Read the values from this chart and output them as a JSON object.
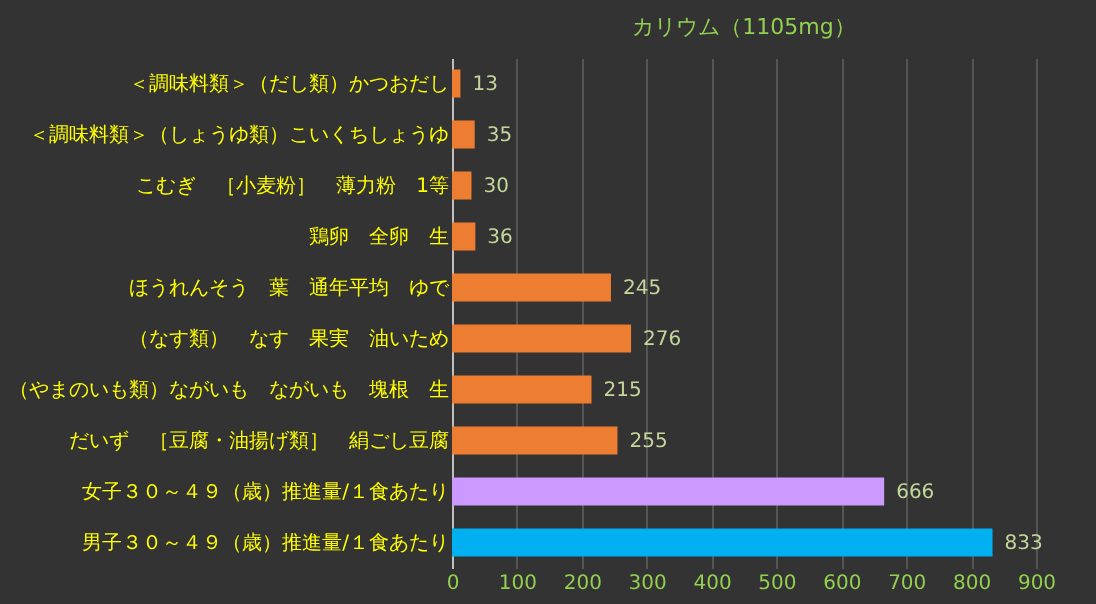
{
  "chart_data": {
    "type": "bar",
    "orientation": "horizontal",
    "title": "カリウム（1105mg）",
    "categories": [
      "＜調味料類＞（だし類）かつおだし",
      "＜調味料類＞（しょうゆ類）こいくちしょうゆ",
      "こむぎ　［小麦粉］　薄力粉　1等",
      "鶏卵　全卵　生",
      "ほうれんそう　葉　通年平均　ゆで",
      "（なす類）　なす　果実　油いため",
      "（やまのいも類）ながいも　ながいも　塊根　生",
      "だいず　［豆腐・油揚げ類］　絹ごし豆腐",
      "女子３０～４９（歳）推進量/１食あたり",
      "男子３０～４９（歳）推進量/１食あたり"
    ],
    "values": [
      13,
      35,
      30,
      36,
      245,
      276,
      215,
      255,
      666,
      833
    ],
    "colors": [
      "#ed7d31",
      "#ed7d31",
      "#ed7d31",
      "#ed7d31",
      "#ed7d31",
      "#ed7d31",
      "#ed7d31",
      "#ed7d31",
      "#cc99ff",
      "#00b0f0"
    ],
    "data_labels": true,
    "xlim": [
      0,
      900
    ],
    "xticks": [
      0,
      100,
      200,
      300,
      400,
      500,
      600,
      700,
      800,
      900
    ],
    "grid": "x"
  }
}
